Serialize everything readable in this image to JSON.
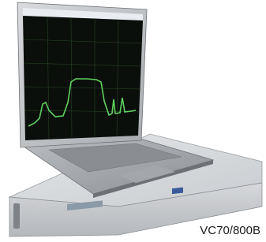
{
  "caption": "VC70/800B"
}
